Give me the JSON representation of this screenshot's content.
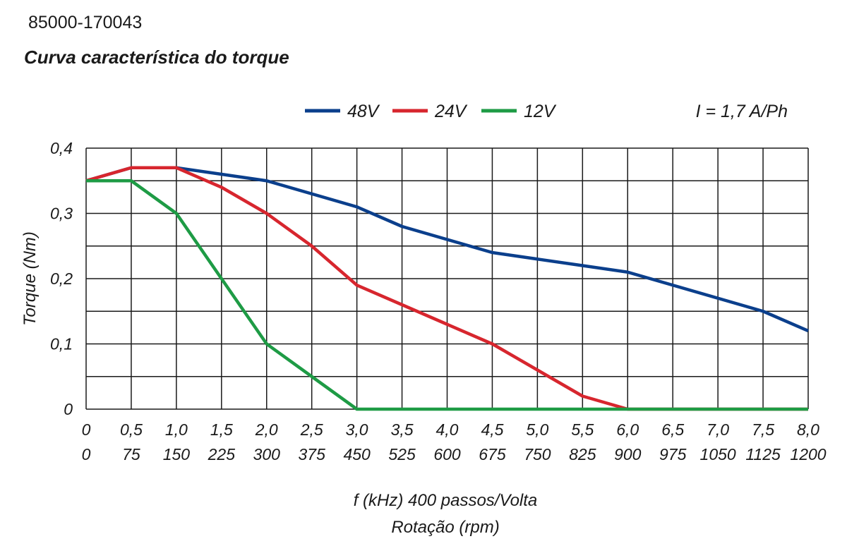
{
  "header": {
    "part_number": "85000-170043",
    "title": "Curva característica do torque"
  },
  "chart_data": {
    "type": "line",
    "title": "Curva característica do torque",
    "annotation": "I = 1,7 A/Ph",
    "ylabel": "Torque (Nm)",
    "xlabel": "f (kHz) 400 passos/Volta",
    "xlabel2": "Rotação (rpm)",
    "xlim": [
      0,
      8
    ],
    "ylim": [
      0,
      0.4
    ],
    "grid": true,
    "legend_position": "top",
    "x_ticks": [
      "0",
      "0,5",
      "1,0",
      "1,5",
      "2,0",
      "2,5",
      "3,0",
      "3,5",
      "4,0",
      "4,5",
      "5,0",
      "5,5",
      "6,0",
      "6,5",
      "7,0",
      "7,5",
      "8,0"
    ],
    "x_ticks_rpm": [
      "0",
      "75",
      "150",
      "225",
      "300",
      "375",
      "450",
      "525",
      "600",
      "675",
      "750",
      "825",
      "900",
      "975",
      "1050",
      "1125",
      "1200"
    ],
    "y_ticks": [
      "0",
      "0,1",
      "0,2",
      "0,3",
      "0,4"
    ],
    "x": [
      0,
      0.5,
      1.0,
      1.5,
      2.0,
      2.5,
      3.0,
      3.5,
      4.0,
      4.5,
      5.0,
      5.5,
      6.0,
      6.5,
      7.0,
      7.5,
      8.0
    ],
    "series": [
      {
        "name": "48V",
        "color": "#0b3f8c",
        "values": [
          0.35,
          0.37,
          0.37,
          0.36,
          0.35,
          0.33,
          0.31,
          0.28,
          0.26,
          0.24,
          0.23,
          0.22,
          0.21,
          0.19,
          0.17,
          0.15,
          0.12
        ]
      },
      {
        "name": "24V",
        "color": "#d7262e",
        "values": [
          0.35,
          0.37,
          0.37,
          0.34,
          0.3,
          0.25,
          0.19,
          0.16,
          0.13,
          0.1,
          0.06,
          0.02,
          0.0,
          0.0,
          0.0,
          0.0,
          0.0
        ]
      },
      {
        "name": "12V",
        "color": "#1e9b45",
        "values": [
          0.35,
          0.35,
          0.3,
          0.2,
          0.1,
          0.05,
          0.0,
          0.0,
          0.0,
          0.0,
          0.0,
          0.0,
          0.0,
          0.0,
          0.0,
          0.0,
          0.0
        ]
      }
    ]
  }
}
